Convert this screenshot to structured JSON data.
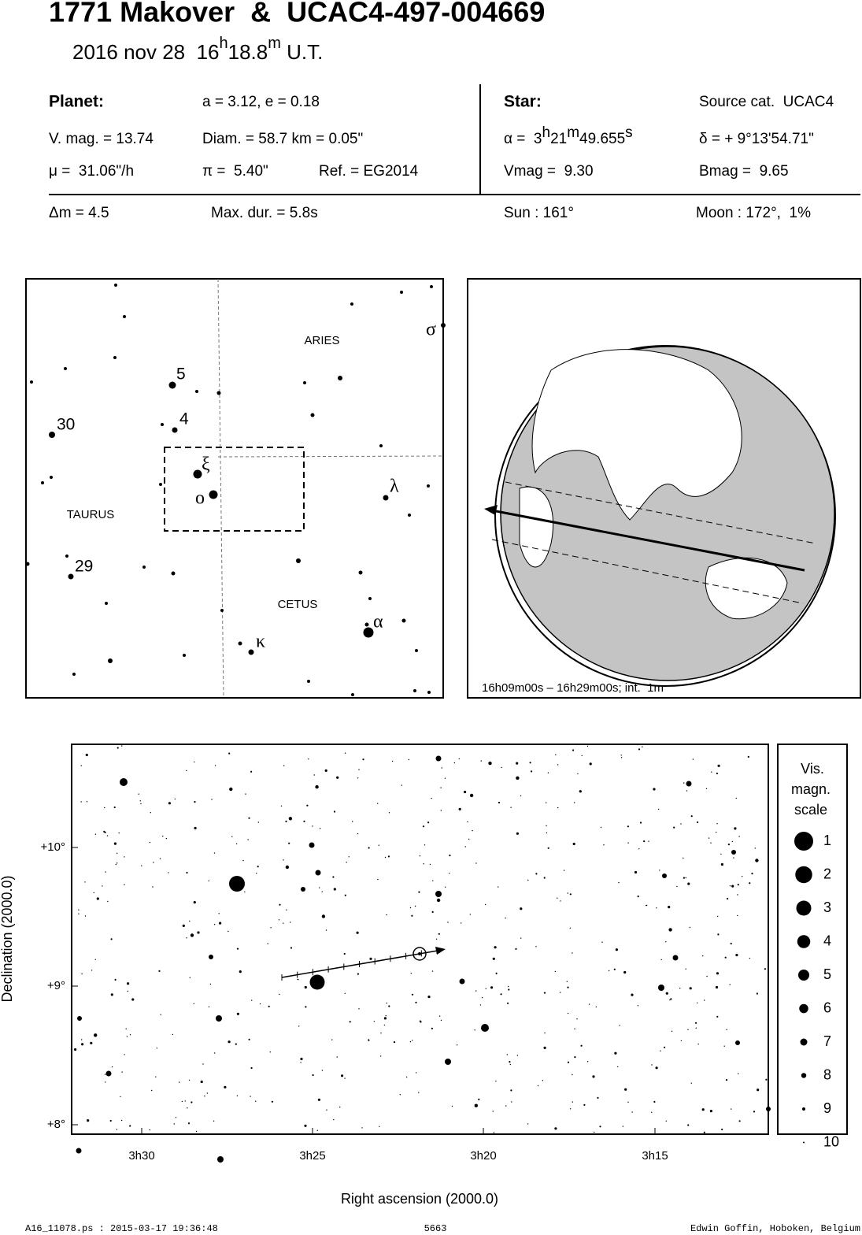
{
  "header": {
    "title": "1771 Makover  &  UCAC4-497-004669",
    "date": {
      "day": "2016 nov 28  16",
      "h": "h",
      "min": "18.8",
      "m": "m",
      "ut": " U.T."
    }
  },
  "info": {
    "planet": {
      "label": "Planet:",
      "orbit": "a = 3.12, e = 0.18",
      "vmag": "V. mag. = 13.74",
      "diam": "Diam. = 58.7 km = 0.05\"",
      "mu": "μ =  31.06\"/h",
      "parallax": "π =  5.40\"",
      "ref": "Ref. = EG2014"
    },
    "star": {
      "label": "Star:",
      "source": "Source cat.  UCAC4",
      "ra": {
        "prefix": "α =  3",
        "h": "h",
        "min": "21",
        "m": "m",
        "sec": "49.655",
        "s": "s"
      },
      "dec": "δ = + 9°13'54.71\"",
      "vmag": "Vmag =  9.30",
      "bmag": "Bmag =  9.65"
    },
    "delta_m": "Δm = 4.5",
    "max_dur": "Max. dur. = 5.8s",
    "sun": "Sun : 161°",
    "moon": "Moon : 172°,  1%"
  },
  "finder": {
    "constellations": [
      "ARIES",
      "TAURUS",
      "CETUS"
    ],
    "star_labels": [
      "5",
      "4",
      "30",
      "29",
      "ξ",
      "ο",
      "λ",
      "α",
      "κ",
      "σ"
    ]
  },
  "globe": {
    "caption": "16h09m00s – 16h29m00s; int.  1m"
  },
  "sky_chart": {
    "y_label": "Declination (2000.0)",
    "y_ticks": [
      "+10°",
      "+9°",
      "+8°"
    ],
    "x_label": "Right ascension (2000.0)",
    "x_ticks": [
      "3h30",
      "3h25",
      "3h20",
      "3h15"
    ],
    "legend": {
      "title": [
        "Vis.",
        "magn.",
        "scale"
      ],
      "items": [
        "1",
        "2",
        "3",
        "4",
        "5",
        "6",
        "7",
        "8",
        "9",
        "10"
      ]
    }
  },
  "footer": {
    "file": "A16_11078.ps : 2015-03-17 19:36:48",
    "number": "5663",
    "author": "Edwin Goffin, Hoboken, Belgium"
  }
}
